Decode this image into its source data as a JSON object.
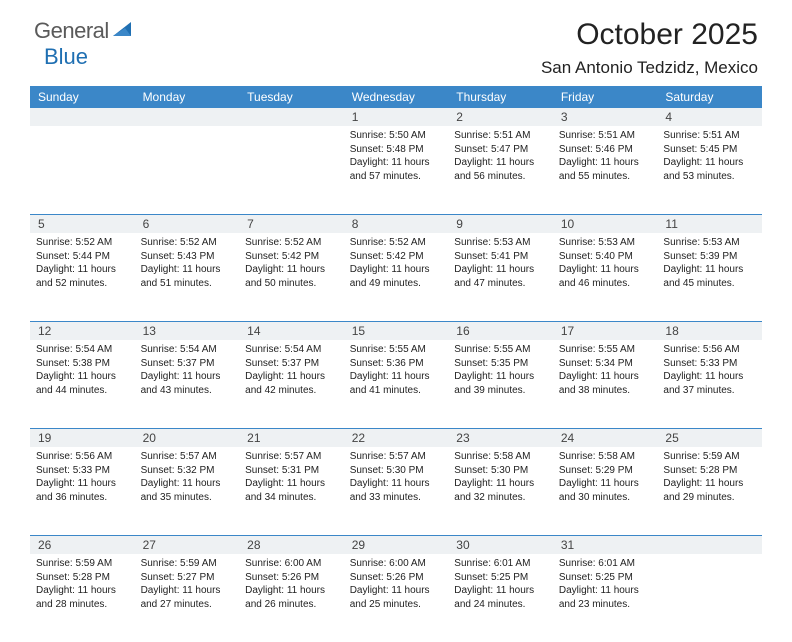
{
  "brand": {
    "word1": "General",
    "word2": "Blue"
  },
  "title": "October 2025",
  "location": "San Antonio Tedzidz, Mexico",
  "colors": {
    "header_bg": "#3b87c8",
    "header_text": "#ffffff",
    "daynum_bg": "#eef1f3",
    "border": "#3b87c8",
    "logo_gray": "#5a5a5a",
    "logo_blue": "#1f6fb2"
  },
  "dayNames": [
    "Sunday",
    "Monday",
    "Tuesday",
    "Wednesday",
    "Thursday",
    "Friday",
    "Saturday"
  ],
  "weeks": [
    {
      "nums": [
        "",
        "",
        "",
        "1",
        "2",
        "3",
        "4"
      ],
      "cells": [
        null,
        null,
        null,
        {
          "sunrise": "5:50 AM",
          "sunset": "5:48 PM",
          "daylight": "11 hours and 57 minutes."
        },
        {
          "sunrise": "5:51 AM",
          "sunset": "5:47 PM",
          "daylight": "11 hours and 56 minutes."
        },
        {
          "sunrise": "5:51 AM",
          "sunset": "5:46 PM",
          "daylight": "11 hours and 55 minutes."
        },
        {
          "sunrise": "5:51 AM",
          "sunset": "5:45 PM",
          "daylight": "11 hours and 53 minutes."
        }
      ]
    },
    {
      "nums": [
        "5",
        "6",
        "7",
        "8",
        "9",
        "10",
        "11"
      ],
      "cells": [
        {
          "sunrise": "5:52 AM",
          "sunset": "5:44 PM",
          "daylight": "11 hours and 52 minutes."
        },
        {
          "sunrise": "5:52 AM",
          "sunset": "5:43 PM",
          "daylight": "11 hours and 51 minutes."
        },
        {
          "sunrise": "5:52 AM",
          "sunset": "5:42 PM",
          "daylight": "11 hours and 50 minutes."
        },
        {
          "sunrise": "5:52 AM",
          "sunset": "5:42 PM",
          "daylight": "11 hours and 49 minutes."
        },
        {
          "sunrise": "5:53 AM",
          "sunset": "5:41 PM",
          "daylight": "11 hours and 47 minutes."
        },
        {
          "sunrise": "5:53 AM",
          "sunset": "5:40 PM",
          "daylight": "11 hours and 46 minutes."
        },
        {
          "sunrise": "5:53 AM",
          "sunset": "5:39 PM",
          "daylight": "11 hours and 45 minutes."
        }
      ]
    },
    {
      "nums": [
        "12",
        "13",
        "14",
        "15",
        "16",
        "17",
        "18"
      ],
      "cells": [
        {
          "sunrise": "5:54 AM",
          "sunset": "5:38 PM",
          "daylight": "11 hours and 44 minutes."
        },
        {
          "sunrise": "5:54 AM",
          "sunset": "5:37 PM",
          "daylight": "11 hours and 43 minutes."
        },
        {
          "sunrise": "5:54 AM",
          "sunset": "5:37 PM",
          "daylight": "11 hours and 42 minutes."
        },
        {
          "sunrise": "5:55 AM",
          "sunset": "5:36 PM",
          "daylight": "11 hours and 41 minutes."
        },
        {
          "sunrise": "5:55 AM",
          "sunset": "5:35 PM",
          "daylight": "11 hours and 39 minutes."
        },
        {
          "sunrise": "5:55 AM",
          "sunset": "5:34 PM",
          "daylight": "11 hours and 38 minutes."
        },
        {
          "sunrise": "5:56 AM",
          "sunset": "5:33 PM",
          "daylight": "11 hours and 37 minutes."
        }
      ]
    },
    {
      "nums": [
        "19",
        "20",
        "21",
        "22",
        "23",
        "24",
        "25"
      ],
      "cells": [
        {
          "sunrise": "5:56 AM",
          "sunset": "5:33 PM",
          "daylight": "11 hours and 36 minutes."
        },
        {
          "sunrise": "5:57 AM",
          "sunset": "5:32 PM",
          "daylight": "11 hours and 35 minutes."
        },
        {
          "sunrise": "5:57 AM",
          "sunset": "5:31 PM",
          "daylight": "11 hours and 34 minutes."
        },
        {
          "sunrise": "5:57 AM",
          "sunset": "5:30 PM",
          "daylight": "11 hours and 33 minutes."
        },
        {
          "sunrise": "5:58 AM",
          "sunset": "5:30 PM",
          "daylight": "11 hours and 32 minutes."
        },
        {
          "sunrise": "5:58 AM",
          "sunset": "5:29 PM",
          "daylight": "11 hours and 30 minutes."
        },
        {
          "sunrise": "5:59 AM",
          "sunset": "5:28 PM",
          "daylight": "11 hours and 29 minutes."
        }
      ]
    },
    {
      "nums": [
        "26",
        "27",
        "28",
        "29",
        "30",
        "31",
        ""
      ],
      "cells": [
        {
          "sunrise": "5:59 AM",
          "sunset": "5:28 PM",
          "daylight": "11 hours and 28 minutes."
        },
        {
          "sunrise": "5:59 AM",
          "sunset": "5:27 PM",
          "daylight": "11 hours and 27 minutes."
        },
        {
          "sunrise": "6:00 AM",
          "sunset": "5:26 PM",
          "daylight": "11 hours and 26 minutes."
        },
        {
          "sunrise": "6:00 AM",
          "sunset": "5:26 PM",
          "daylight": "11 hours and 25 minutes."
        },
        {
          "sunrise": "6:01 AM",
          "sunset": "5:25 PM",
          "daylight": "11 hours and 24 minutes."
        },
        {
          "sunrise": "6:01 AM",
          "sunset": "5:25 PM",
          "daylight": "11 hours and 23 minutes."
        },
        null
      ]
    }
  ],
  "labels": {
    "sunrise": "Sunrise:",
    "sunset": "Sunset:",
    "daylight": "Daylight:"
  }
}
